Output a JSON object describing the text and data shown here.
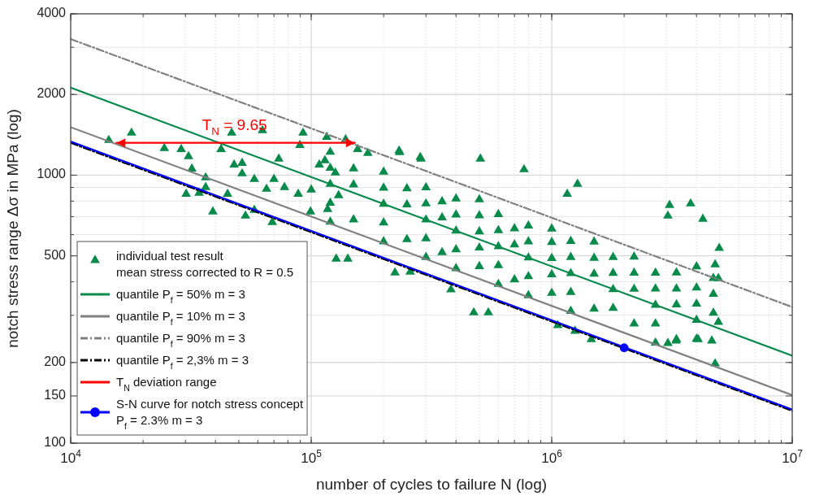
{
  "chart_data": {
    "type": "scatter",
    "xlabel": "number of cycles to failure N (log)",
    "ylabel": "notch stress range Δσ in MPa (log)",
    "log": "xy",
    "xlim": [
      10000,
      10000000
    ],
    "ylim": [
      100,
      4000
    ],
    "xticks": [
      {
        "value": 10000,
        "label": "10$^{4}$"
      },
      {
        "value": 100000,
        "label": "10$^{5}$"
      },
      {
        "value": 1000000,
        "label": "10$^{6}$"
      },
      {
        "value": 10000000,
        "label": "10$^{7}$"
      }
    ],
    "yticks": [
      100,
      150,
      200,
      500,
      1000,
      2000,
      4000
    ],
    "grid": true,
    "legend": "bottom left",
    "annotations": [
      {
        "text": "T$_{N}$ = 9.65",
        "x": 48000,
        "y": 1530
      }
    ],
    "series": [
      {
        "name": "individual test result\nmean stress corrected to R = 0.5",
        "color": "#078a4a",
        "marker": "triangle",
        "x": [
          14400,
          17900,
          24500,
          28800,
          30900,
          31900,
          36400,
          30200,
          34200,
          36400,
          39000,
          42200,
          44900,
          46700,
          47800,
          51600,
          51600,
          58000,
          62700,
          53300,
          58000,
          65200,
          73300,
          77400,
          70000,
          68900,
          88300,
          89700,
          92500,
          108000,
          116000,
          114000,
          126000,
          139000,
          156000,
          172000,
          232000,
          284000,
          100000,
          99300,
          130000,
          117000,
          233000,
          286000,
          505000,
          767000,
          1280000,
          1160000,
          3090000,
          3780000,
          3040000,
          4250000,
          4970000,
          4780000,
          4930000,
          4930000,
          4630000,
          4780000,
          4060000,
          3040000,
          3290000,
          1460000,
          1250000,
          1060000,
          474000,
          545000,
          381000,
          223000,
          258000,
          127000,
          142000,
          120000,
          120000,
          120000,
          120000,
          120000,
          150000,
          150000,
          150000,
          200000,
          200000,
          200000,
          200000,
          200000,
          250000,
          250000,
          250000,
          300000,
          300000,
          300000,
          300000,
          300000,
          350000,
          350000,
          350000,
          400000,
          400000,
          400000,
          400000,
          400000,
          500000,
          500000,
          500000,
          500000,
          500000,
          600000,
          600000,
          600000,
          600000,
          600000,
          700000,
          700000,
          700000,
          800000,
          800000,
          800000,
          800000,
          800000,
          1000000,
          1000000,
          1000000,
          1000000,
          1000000,
          1200000,
          1200000,
          1200000,
          1200000,
          1200000,
          1500000,
          1500000,
          1500000,
          1500000,
          1800000,
          1800000,
          1800000,
          1800000,
          2200000,
          2200000,
          2200000,
          2200000,
          2700000,
          2700000,
          2700000,
          2700000,
          2700000,
          3300000,
          3300000,
          3300000,
          3300000,
          4000000,
          4000000,
          4000000,
          4000000,
          4000000,
          4700000,
          4700000,
          4700000
        ],
        "values": [
          1350,
          1438,
          1259,
          1250,
          1175,
          1057,
          979,
          851,
          858,
          901,
          731,
          1250,
          851,
          1438,
          1094,
          1110,
          1014,
          966,
          1468,
          705,
          741,
          888,
          1150,
          901,
          966,
          667,
          851,
          1294,
          1438,
          1094,
          1388,
          1135,
          1021,
          1359,
          1250,
          1208,
          1233,
          1166,
          882,
          731,
          840,
          746,
          1216,
          1150,
          1150,
          1050,
          927,
          851,
          773,
          783,
          705,
          686,
          534,
          464,
          412,
          283,
          241,
          198,
          244,
          236,
          241,
          244,
          262,
          275,
          307,
          307,
          374,
          433,
          436,
          487,
          487,
          670,
          788,
          926,
          1063,
          1220,
          683,
          922,
          1058,
          565,
          665,
          781,
          897,
          1029,
          576,
          777,
          892,
          494,
          580,
          682,
          783,
          899,
          515,
          695,
          797,
          449,
          528,
          620,
          712,
          817,
          457,
          536,
          616,
          707,
          812,
          392,
          461,
          542,
          622,
          714,
          408,
          551,
          632,
          356,
          419,
          492,
          565,
          648,
          363,
          426,
          490,
          562,
          631,
          311,
          366,
          430,
          494,
          567,
          317,
          428,
          491,
          564,
          319,
          375,
          431,
          494,
          279,
          376,
          432,
          496,
          237,
          279,
          328,
          377,
          432,
          244,
          329,
          377,
          433,
          245,
          288,
          331,
          380,
          456,
          306,
          360,
          413
        ]
      },
      {
        "type": "line",
        "name": "quantile P$_{f}$ = 50% m = 3",
        "color": "#078a4a",
        "line_style": "solid",
        "x": [
          10000,
          10000000
        ],
        "values": [
          2120,
          212
        ]
      },
      {
        "type": "line",
        "name": "quantile P$_{f}$ = 10% m = 3",
        "color": "#808080",
        "line_style": "solid",
        "x": [
          10000,
          10000000
        ],
        "values": [
          1510,
          151
        ]
      },
      {
        "type": "line",
        "name": "quantile P$_{f}$ = 90% m = 3",
        "color": "#808080",
        "line_style": "dashed",
        "x": [
          10000,
          10000000
        ],
        "values": [
          3220,
          322
        ]
      },
      {
        "type": "line",
        "name": "quantile P$_{f}$ = 2,3% m = 3",
        "color": "#000000",
        "line_style": "dashed",
        "x": [
          10000,
          10000000
        ],
        "values": [
          1320,
          132
        ]
      },
      {
        "type": "line",
        "name": "T$_{N}$ deviation range",
        "color": "#ff0000",
        "line_style": "solid",
        "x": [
          15500,
          152000
        ],
        "values": [
          1320,
          1320
        ]
      },
      {
        "type": "line",
        "name": "S-N curve for notch stress concept\nP$_{f}$ = 2.3% m = 3",
        "color": "#0000ff",
        "line_style": "solid",
        "x": [
          10000,
          10000000
        ],
        "values": [
          1335,
          133.5
        ]
      },
      {
        "type": "scatter",
        "color": "#0000ff",
        "marker": "circle",
        "x": [
          2000000
        ],
        "values": [
          227
        ]
      }
    ]
  }
}
